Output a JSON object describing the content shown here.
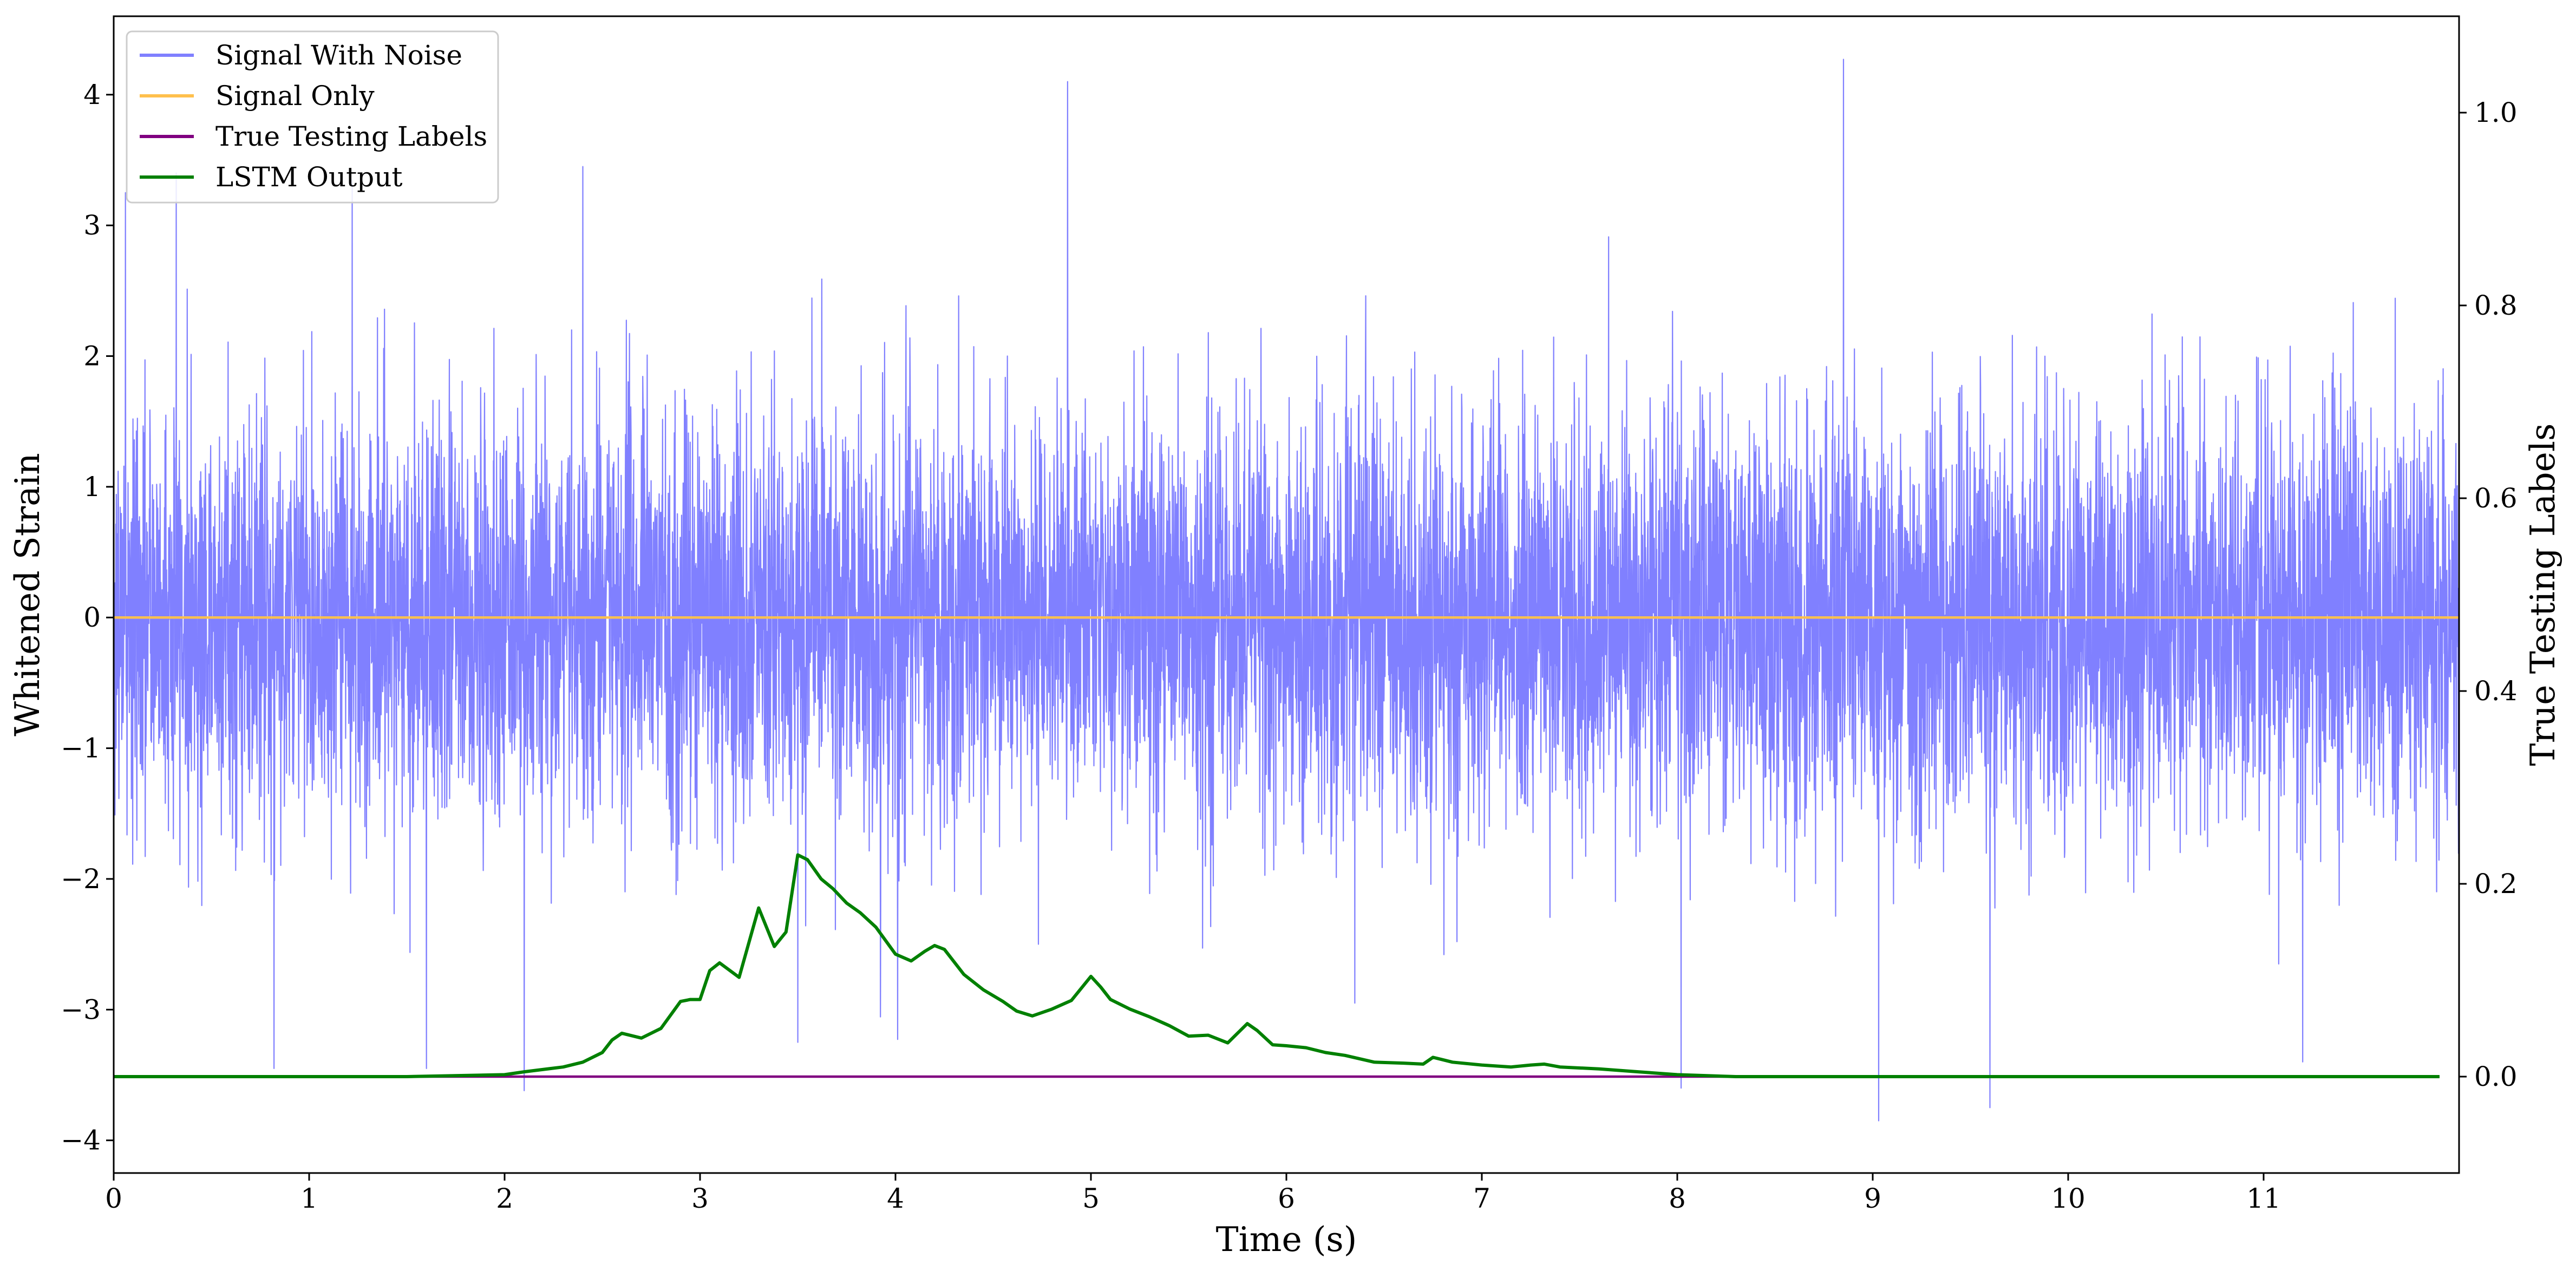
{
  "chart_data": {
    "type": "line",
    "xlabel": "Time (s)",
    "ylabel_left": "Whitened Strain",
    "ylabel_right": "True Testing Labels",
    "xlim": [
      0,
      12
    ],
    "ylim_left": [
      -4.25,
      4.6
    ],
    "ylim_right": [
      -0.1,
      1.1
    ],
    "x_ticks": [
      0,
      1,
      2,
      3,
      4,
      5,
      6,
      7,
      8,
      9,
      10,
      11
    ],
    "y_ticks_left": [
      -4,
      -3,
      -2,
      -1,
      0,
      1,
      2,
      3,
      4
    ],
    "y_ticks_right": [
      0.0,
      0.2,
      0.4,
      0.6,
      0.8,
      1.0
    ],
    "x_tick_labels": [
      "0",
      "1",
      "2",
      "3",
      "4",
      "5",
      "6",
      "7",
      "8",
      "9",
      "10",
      "11"
    ],
    "y_tick_labels_left": [
      "−4",
      "−3",
      "−2",
      "−1",
      "0",
      "1",
      "2",
      "3",
      "4"
    ],
    "y_tick_labels_right": [
      "0.0",
      "0.2",
      "0.4",
      "0.6",
      "0.8",
      "1.0"
    ],
    "grid": false,
    "legend_position": "top-left",
    "series": [
      {
        "name": "Signal With Noise",
        "axis": "left",
        "color": "#8080ff",
        "kind": "noise",
        "noise_std": 0.78,
        "noise_range": [
          -3.85,
          4.3
        ],
        "x_range": [
          0,
          12
        ],
        "spikes": [
          {
            "x": 0.06,
            "y": 3.25
          },
          {
            "x": 0.32,
            "y": 3.4
          },
          {
            "x": 0.82,
            "y": -3.45
          },
          {
            "x": 1.22,
            "y": 3.35
          },
          {
            "x": 1.6,
            "y": -3.45
          },
          {
            "x": 2.1,
            "y": -3.62
          },
          {
            "x": 2.4,
            "y": 3.45
          },
          {
            "x": 3.5,
            "y": -3.25
          },
          {
            "x": 4.88,
            "y": 4.1
          },
          {
            "x": 6.35,
            "y": -2.95
          },
          {
            "x": 8.02,
            "y": -3.6
          },
          {
            "x": 8.85,
            "y": 4.27
          },
          {
            "x": 9.03,
            "y": -3.85
          },
          {
            "x": 9.6,
            "y": -3.75
          },
          {
            "x": 11.2,
            "y": -3.4
          }
        ]
      },
      {
        "name": "Signal Only",
        "axis": "left",
        "color": "#ffc04d",
        "x": [
          0,
          12
        ],
        "y": [
          0,
          0
        ]
      },
      {
        "name": "True Testing Labels",
        "axis": "right",
        "color": "#800080",
        "x": [
          0,
          11.9
        ],
        "y": [
          0,
          0
        ]
      },
      {
        "name": "LSTM Output",
        "axis": "right",
        "color": "#008000",
        "x": [
          0,
          1.0,
          1.5,
          2.0,
          2.1,
          2.3,
          2.4,
          2.5,
          2.55,
          2.6,
          2.7,
          2.8,
          2.9,
          2.95,
          3.0,
          3.05,
          3.1,
          3.2,
          3.3,
          3.38,
          3.44,
          3.5,
          3.55,
          3.62,
          3.68,
          3.75,
          3.82,
          3.9,
          4.0,
          4.08,
          4.15,
          4.2,
          4.25,
          4.35,
          4.45,
          4.55,
          4.62,
          4.7,
          4.8,
          4.9,
          5.0,
          5.05,
          5.1,
          5.2,
          5.3,
          5.4,
          5.5,
          5.6,
          5.7,
          5.8,
          5.85,
          5.93,
          6.0,
          6.1,
          6.2,
          6.3,
          6.45,
          6.6,
          6.7,
          6.75,
          6.85,
          7.0,
          7.15,
          7.25,
          7.32,
          7.4,
          7.6,
          7.8,
          8.0,
          8.3,
          8.6,
          9.0,
          10.0,
          11.9
        ],
        "y": [
          0.0,
          0.0,
          0.0,
          0.002,
          0.005,
          0.01,
          0.015,
          0.025,
          0.038,
          0.045,
          0.04,
          0.05,
          0.078,
          0.08,
          0.08,
          0.11,
          0.118,
          0.103,
          0.175,
          0.135,
          0.15,
          0.23,
          0.225,
          0.205,
          0.195,
          0.18,
          0.17,
          0.155,
          0.127,
          0.12,
          0.13,
          0.136,
          0.132,
          0.106,
          0.09,
          0.078,
          0.068,
          0.063,
          0.07,
          0.079,
          0.104,
          0.093,
          0.08,
          0.07,
          0.062,
          0.053,
          0.042,
          0.043,
          0.035,
          0.055,
          0.048,
          0.033,
          0.032,
          0.03,
          0.025,
          0.022,
          0.015,
          0.014,
          0.013,
          0.02,
          0.015,
          0.012,
          0.01,
          0.012,
          0.013,
          0.01,
          0.008,
          0.005,
          0.002,
          0.0,
          0.0,
          0.0,
          0.0,
          0.0
        ]
      }
    ]
  }
}
